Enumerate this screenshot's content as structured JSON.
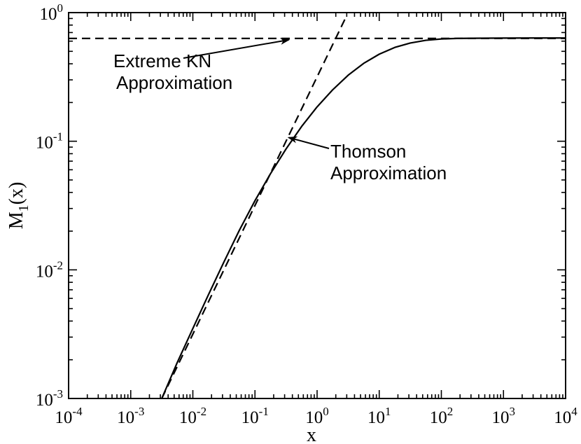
{
  "chart_data": {
    "type": "line",
    "x_scale": "log",
    "y_scale": "log",
    "xlim": [
      0.0001,
      10000
    ],
    "ylim": [
      0.001,
      1
    ],
    "xlabel": "x",
    "ylabel": "M_1(x)",
    "ylabel_parts": {
      "main": "M",
      "sub": "1",
      "rest": "(x)"
    },
    "x_ticks": [
      {
        "base": "10",
        "exp": "-4"
      },
      {
        "base": "10",
        "exp": "-3"
      },
      {
        "base": "10",
        "exp": "-2"
      },
      {
        "base": "10",
        "exp": "-1"
      },
      {
        "base": "10",
        "exp": "0"
      },
      {
        "base": "10",
        "exp": "1"
      },
      {
        "base": "10",
        "exp": "2"
      },
      {
        "base": "10",
        "exp": "3"
      },
      {
        "base": "10",
        "exp": "4"
      }
    ],
    "y_ticks": [
      {
        "base": "10",
        "exp": "-3"
      },
      {
        "base": "10",
        "exp": "-2"
      },
      {
        "base": "10",
        "exp": "-1"
      },
      {
        "base": "10",
        "exp": "0"
      }
    ],
    "grid": false,
    "series": [
      {
        "style": "solid",
        "x": [
          0.00316,
          0.0056,
          0.01,
          0.0178,
          0.0316,
          0.056,
          0.1,
          0.178,
          0.316,
          0.562,
          1.0,
          1.78,
          3.16,
          5.62,
          10,
          17.8,
          31.6,
          56.2,
          100,
          178,
          316,
          1000,
          3160,
          10000
        ],
        "y": [
          0.001,
          0.0019,
          0.0035,
          0.0064,
          0.0115,
          0.0203,
          0.0345,
          0.056,
          0.087,
          0.13,
          0.185,
          0.251,
          0.326,
          0.403,
          0.475,
          0.536,
          0.58,
          0.609,
          0.624,
          0.63,
          0.632,
          0.634,
          0.635,
          0.635
        ]
      },
      {
        "style": "dashed",
        "x": [
          0.00316,
          3.0
        ],
        "y": [
          0.001,
          0.95
        ]
      },
      {
        "style": "dashed",
        "x": [
          0.0001,
          10000
        ],
        "y": [
          0.63,
          0.63
        ]
      }
    ],
    "annotations": [
      {
        "lines": [
          "Extreme KN",
          "Approximation"
        ],
        "arrow_to": {
          "x": 0.35,
          "y": 0.63
        }
      },
      {
        "lines": [
          "Thomson",
          "Approximation"
        ],
        "arrow_to": {
          "x": 0.35,
          "y": 0.118
        }
      }
    ]
  }
}
